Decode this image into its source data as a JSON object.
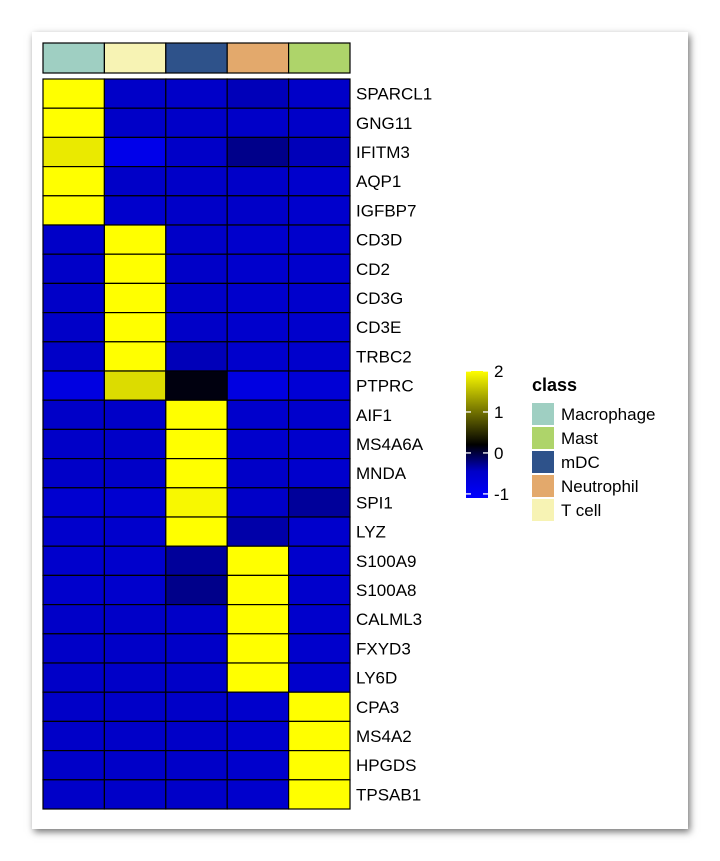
{
  "chart_data": {
    "type": "heatmap",
    "columns": [
      {
        "class": "Macrophage",
        "color": "#9fcfc2"
      },
      {
        "class": "T cell",
        "color": "#f7f3b4"
      },
      {
        "class": "mDC",
        "color": "#2e528a"
      },
      {
        "class": "Neutrophil",
        "color": "#e3a96c"
      },
      {
        "class": "Mast",
        "color": "#aed46a"
      }
    ],
    "rows": [
      "SPARCL1",
      "GNG11",
      "IFITM3",
      "AQP1",
      "IGFBP7",
      "CD3D",
      "CD2",
      "CD3G",
      "CD3E",
      "TRBC2",
      "PTPRC",
      "AIF1",
      "MS4A6A",
      "MNDA",
      "SPI1",
      "LYZ",
      "S100A9",
      "S100A8",
      "CALML3",
      "FXYD3",
      "LY6D",
      "CPA3",
      "MS4A2",
      "HPGDS",
      "TPSAB1"
    ],
    "values": [
      [
        2.0,
        -0.45,
        -0.45,
        -0.4,
        -0.45
      ],
      [
        2.0,
        -0.45,
        -0.45,
        -0.45,
        -0.45
      ],
      [
        1.85,
        -0.85,
        -0.45,
        -0.25,
        -0.4
      ],
      [
        2.0,
        -0.45,
        -0.45,
        -0.45,
        -0.5
      ],
      [
        2.0,
        -0.5,
        -0.45,
        -0.45,
        -0.5
      ],
      [
        -0.45,
        2.0,
        -0.45,
        -0.5,
        -0.5
      ],
      [
        -0.45,
        2.0,
        -0.45,
        -0.5,
        -0.5
      ],
      [
        -0.45,
        2.0,
        -0.45,
        -0.5,
        -0.5
      ],
      [
        -0.45,
        2.0,
        -0.45,
        -0.5,
        -0.5
      ],
      [
        -0.45,
        2.0,
        -0.4,
        -0.5,
        -0.5
      ],
      [
        -0.75,
        1.75,
        0.15,
        -0.75,
        -0.6
      ],
      [
        -0.45,
        -0.45,
        2.0,
        -0.5,
        -0.5
      ],
      [
        -0.45,
        -0.45,
        2.0,
        -0.5,
        -0.5
      ],
      [
        -0.45,
        -0.45,
        2.0,
        -0.45,
        -0.5
      ],
      [
        -0.55,
        -0.55,
        1.95,
        -0.45,
        -0.3
      ],
      [
        -0.5,
        -0.5,
        2.0,
        -0.35,
        -0.5
      ],
      [
        -0.5,
        -0.5,
        -0.3,
        2.0,
        -0.5
      ],
      [
        -0.5,
        -0.5,
        -0.25,
        2.0,
        -0.5
      ],
      [
        -0.45,
        -0.45,
        -0.45,
        2.0,
        -0.5
      ],
      [
        -0.45,
        -0.45,
        -0.45,
        2.0,
        -0.5
      ],
      [
        -0.45,
        -0.45,
        -0.45,
        2.0,
        -0.5
      ],
      [
        -0.45,
        -0.45,
        -0.45,
        -0.5,
        2.0
      ],
      [
        -0.45,
        -0.45,
        -0.45,
        -0.5,
        2.0
      ],
      [
        -0.45,
        -0.45,
        -0.45,
        -0.5,
        2.0
      ],
      [
        -0.45,
        -0.45,
        -0.45,
        -0.5,
        2.0
      ]
    ],
    "color_scale": {
      "ticks": [
        "2",
        "1",
        "0",
        "-1"
      ],
      "tick_values": [
        2,
        1,
        0,
        -1
      ],
      "domain": [
        -1.1,
        2.0
      ],
      "stops": [
        {
          "value": -1.1,
          "color": "#0000ff"
        },
        {
          "value": -0.45,
          "color": "#0000c8"
        },
        {
          "value": 0.2,
          "color": "#000000"
        },
        {
          "value": 2.0,
          "color": "#ffff00"
        }
      ]
    },
    "legend": {
      "title": "class",
      "entries": [
        {
          "label": "Macrophage",
          "color": "#9fcfc2"
        },
        {
          "label": "Mast",
          "color": "#aed46a"
        },
        {
          "label": "mDC",
          "color": "#2e528a"
        },
        {
          "label": "Neutrophil",
          "color": "#e3a96c"
        },
        {
          "label": "T cell",
          "color": "#f7f3b4"
        }
      ],
      "placement": "right"
    },
    "title": "",
    "xlabel": "",
    "ylabel": ""
  }
}
